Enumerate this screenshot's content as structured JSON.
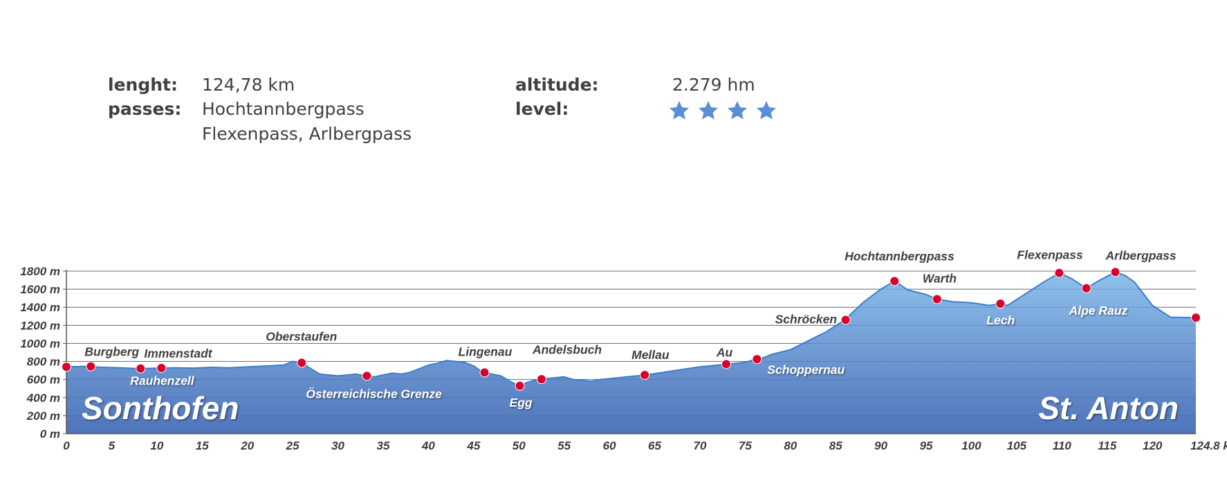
{
  "info": {
    "length_label": "lenght:",
    "length_value": "124,78  km",
    "passes_label": "passes:",
    "passes_line1": "Hochtannbergpass",
    "passes_line2": "Flexenpass, Arlbergpass",
    "altitude_label": "altitude:",
    "altitude_value": "2.279 hm",
    "level_label": "level:",
    "level_stars": 4,
    "star_color": "#5b8fd4"
  },
  "chart_data": {
    "type": "area",
    "title": "",
    "xlabel": "",
    "ylabel": "",
    "x_unit": "km",
    "y_unit": "m",
    "xlim": [
      0,
      124.8
    ],
    "ylim": [
      0,
      1800
    ],
    "x_ticks": [
      0,
      5,
      10,
      15,
      20,
      25,
      30,
      35,
      40,
      45,
      50,
      55,
      60,
      65,
      70,
      75,
      80,
      85,
      90,
      95,
      100,
      105,
      110,
      115,
      120,
      124.8
    ],
    "x_tick_labels": [
      "0",
      "5",
      "10",
      "15",
      "20",
      "25",
      "30",
      "35",
      "40",
      "45",
      "50",
      "55",
      "60",
      "65",
      "70",
      "75",
      "80",
      "85",
      "90",
      "95",
      "100",
      "105",
      "110",
      "115",
      "120",
      "124.8 km"
    ],
    "y_ticks": [
      0,
      200,
      400,
      600,
      800,
      1000,
      1200,
      1400,
      1600,
      1800
    ],
    "y_tick_labels": [
      "0 m",
      "200 m",
      "400 m",
      "600 m",
      "800 m",
      "1000 m",
      "1200 m",
      "1400 m",
      "1600 m",
      "1800 m"
    ],
    "grid": true,
    "start_label": "Sonthofen",
    "end_label": "St. Anton",
    "fill_top": "#8fc0ec",
    "fill_bottom": "#4f74ba",
    "line_color": "#3c7fc8",
    "marker_color": "#d9002b",
    "profile": {
      "x": [
        0,
        2,
        4,
        6,
        8,
        10,
        12,
        14,
        16,
        18,
        20,
        22,
        24,
        25,
        26,
        27,
        28,
        29,
        30,
        31,
        32,
        33,
        34,
        35,
        36,
        37,
        38,
        39,
        40,
        41,
        42,
        43,
        44,
        45,
        46,
        47,
        48,
        49,
        50,
        51,
        52,
        53,
        54,
        55,
        56,
        57,
        58,
        59,
        60,
        62,
        64,
        66,
        68,
        70,
        72,
        73,
        74,
        75,
        76,
        77,
        78,
        80,
        82,
        84,
        86,
        88,
        90,
        91.5,
        93,
        95,
        96.2,
        98,
        100,
        102,
        103.2,
        104,
        106,
        108,
        109.7,
        111,
        112.7,
        114,
        115.9,
        117,
        118,
        120,
        122,
        124.8
      ],
      "y": [
        740,
        745,
        735,
        730,
        720,
        725,
        730,
        725,
        735,
        730,
        740,
        750,
        760,
        800,
        785,
        720,
        660,
        650,
        640,
        650,
        660,
        640,
        630,
        650,
        670,
        660,
        680,
        720,
        760,
        780,
        810,
        800,
        790,
        750,
        680,
        660,
        640,
        580,
        530,
        570,
        600,
        610,
        620,
        630,
        600,
        590,
        580,
        600,
        610,
        630,
        650,
        680,
        710,
        740,
        760,
        770,
        780,
        790,
        820,
        840,
        880,
        930,
        1030,
        1130,
        1260,
        1450,
        1600,
        1690,
        1590,
        1540,
        1490,
        1460,
        1450,
        1420,
        1440,
        1420,
        1550,
        1680,
        1780,
        1720,
        1610,
        1690,
        1790,
        1750,
        1680,
        1420,
        1290,
        1285
      ]
    },
    "points": [
      {
        "name": "Sonthofen",
        "x": 0,
        "y": 740
      },
      {
        "name": "Burgberg",
        "x": 2.7,
        "y": 745
      },
      {
        "name": "Rauhenzell",
        "x": 8.2,
        "y": 722
      },
      {
        "name": "Immenstadt",
        "x": 10.5,
        "y": 728
      },
      {
        "name": "Oberstaufen",
        "x": 26,
        "y": 785
      },
      {
        "name": "Österreichische Grenze",
        "x": 33.2,
        "y": 640
      },
      {
        "name": "Lingenau",
        "x": 46.2,
        "y": 678
      },
      {
        "name": "Egg",
        "x": 50.1,
        "y": 530
      },
      {
        "name": "Andelsbuch",
        "x": 52.5,
        "y": 603
      },
      {
        "name": "Mellau",
        "x": 63.9,
        "y": 650
      },
      {
        "name": "Au",
        "x": 72.9,
        "y": 770
      },
      {
        "name": "Schoppernau",
        "x": 76.3,
        "y": 825
      },
      {
        "name": "Schröcken",
        "x": 86.1,
        "y": 1260
      },
      {
        "name": "Hochtannbergpass",
        "x": 91.5,
        "y": 1690
      },
      {
        "name": "Warth",
        "x": 96.2,
        "y": 1490
      },
      {
        "name": "Lech",
        "x": 103.2,
        "y": 1440
      },
      {
        "name": "Flexenpass",
        "x": 109.7,
        "y": 1780
      },
      {
        "name": "Alpe Rauz",
        "x": 112.7,
        "y": 1610
      },
      {
        "name": "Arlbergpass",
        "x": 115.9,
        "y": 1790
      },
      {
        "name": "St. Anton",
        "x": 124.8,
        "y": 1285
      }
    ]
  }
}
